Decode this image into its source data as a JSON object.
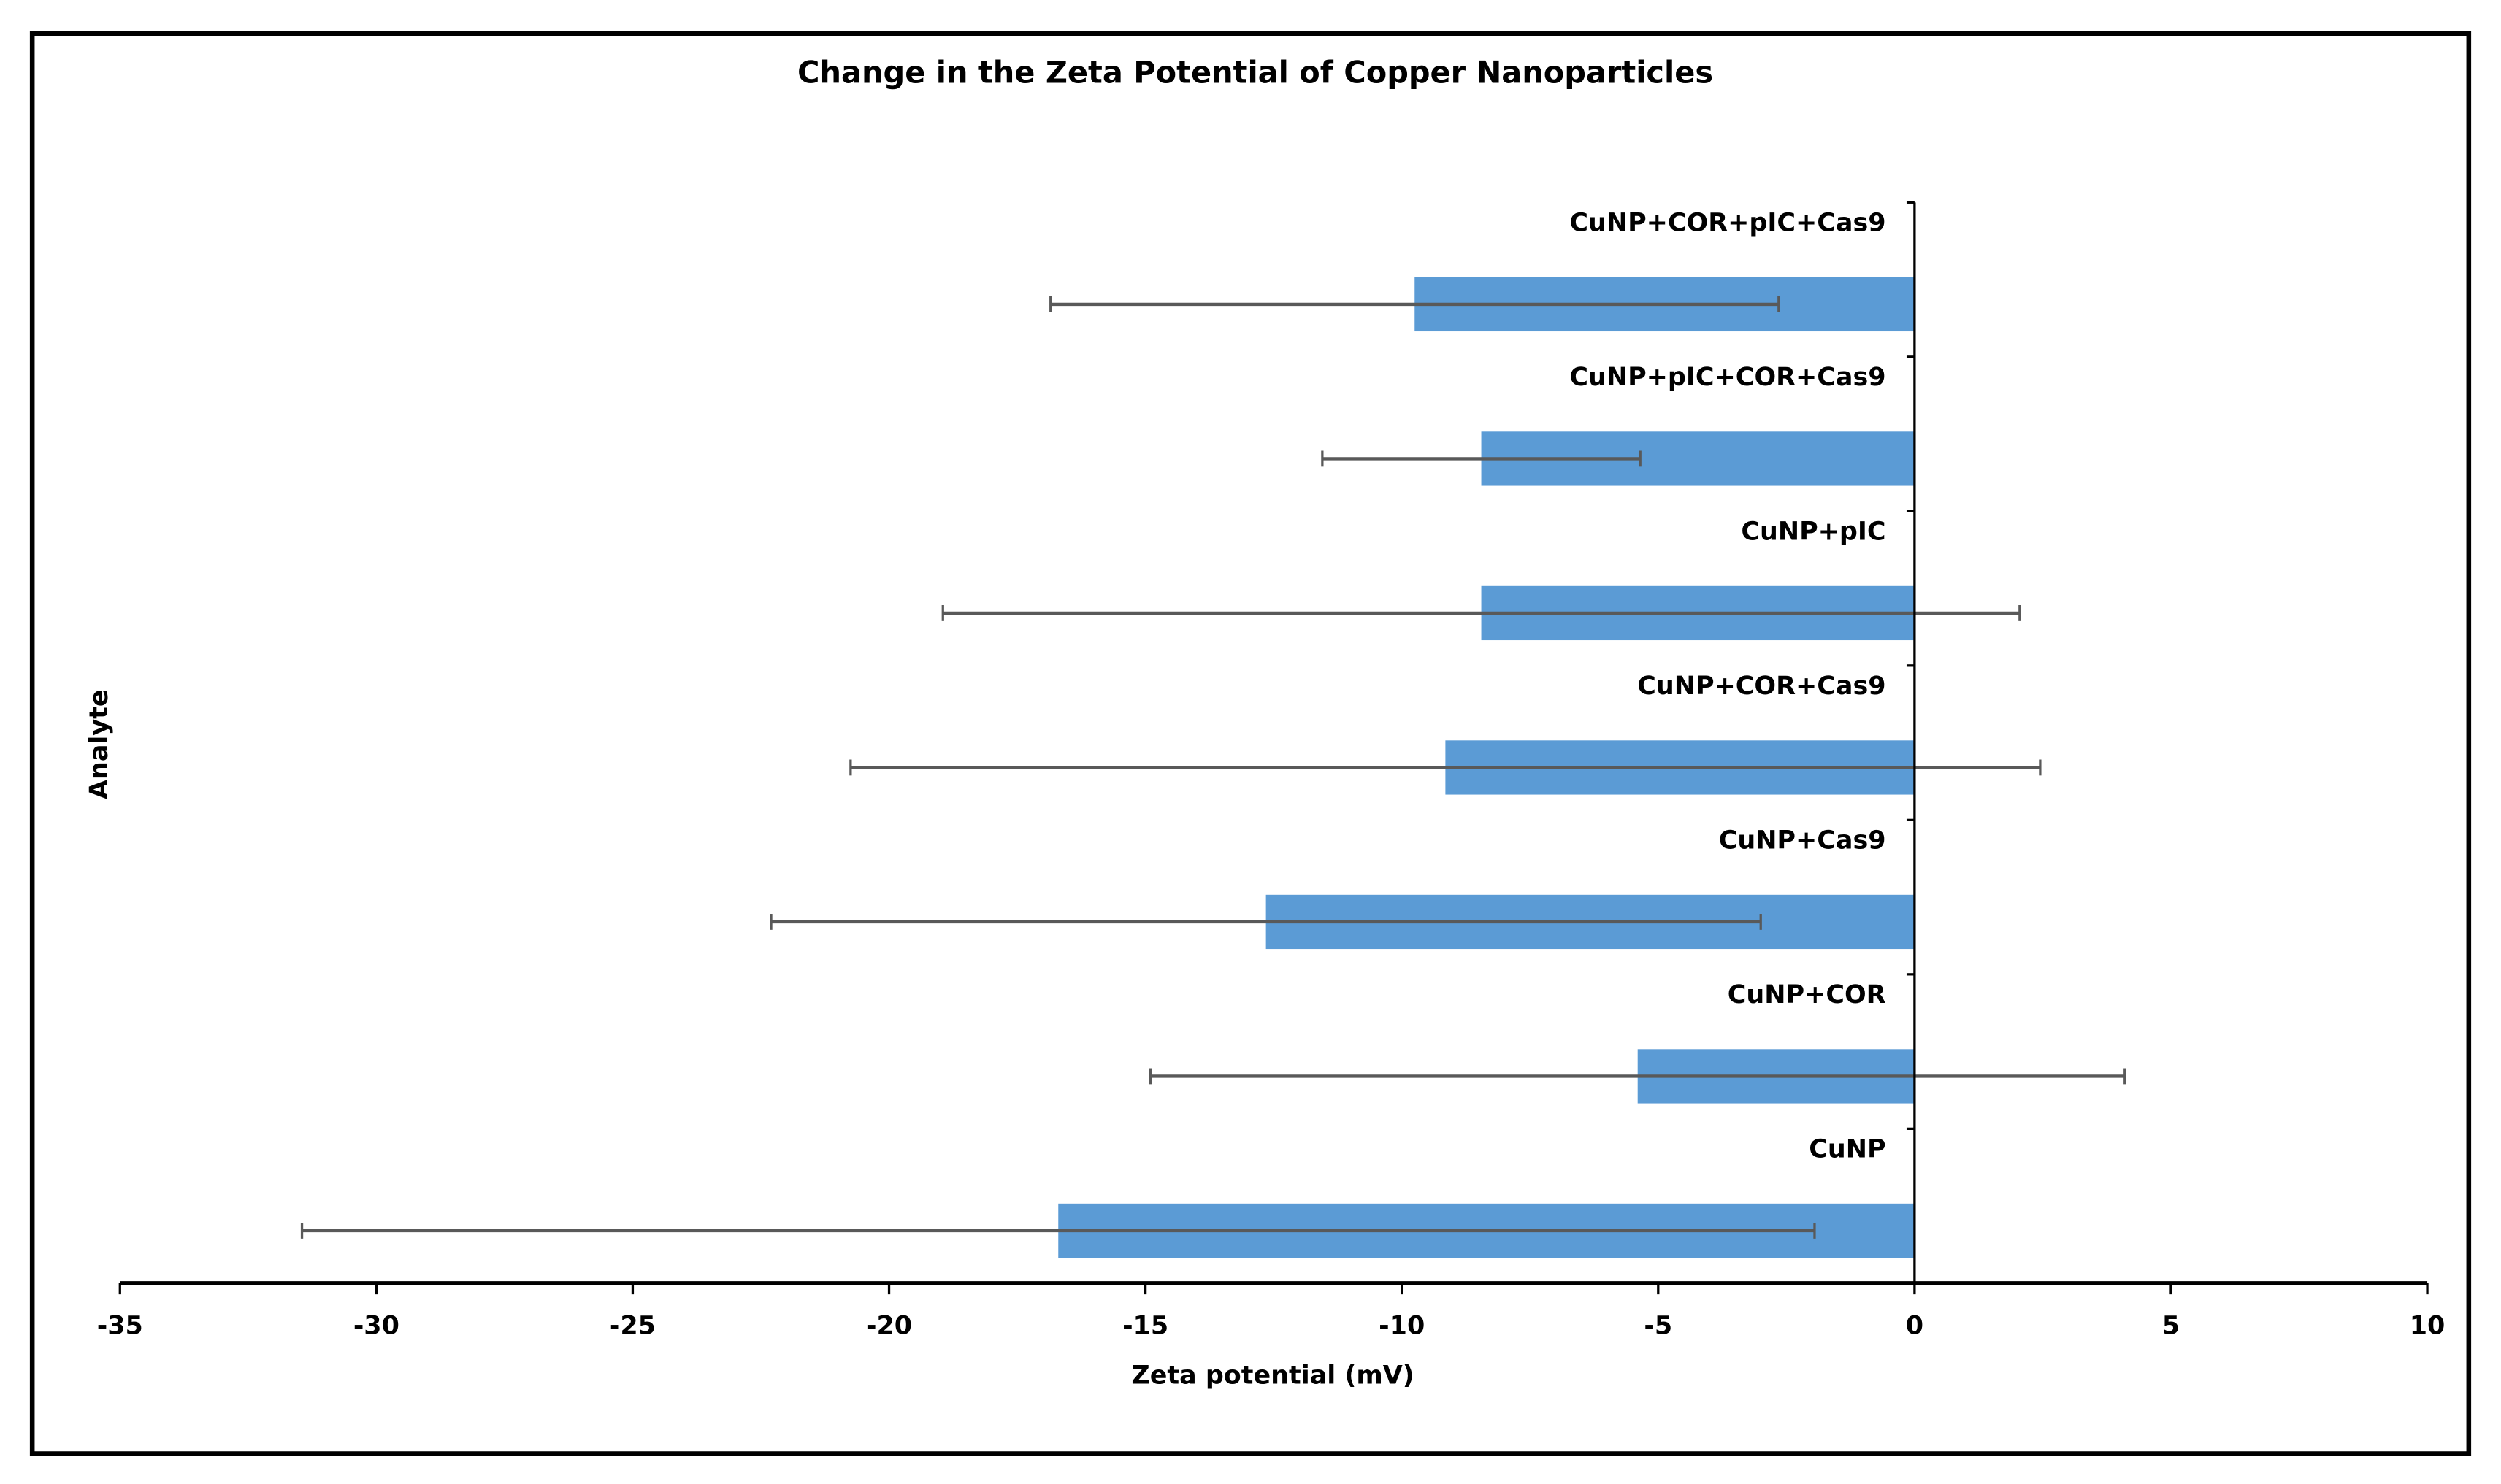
{
  "chart_data": {
    "type": "bar",
    "orientation": "horizontal",
    "title": "Change in the Zeta Potential of Copper Nanoparticles",
    "xlabel": "Zeta potential (mV)",
    "ylabel": "Analyte",
    "xlim": [
      -35,
      10
    ],
    "xticks": [
      "-35",
      "-30",
      "-25",
      "-20",
      "-15",
      "-10",
      "-5",
      "0",
      "5",
      "10"
    ],
    "xtick_values": [
      -35,
      -30,
      -25,
      -20,
      -15,
      -10,
      -5,
      0,
      5,
      10
    ],
    "grid": false,
    "legend": "none",
    "bar_color": "#5b9bd5",
    "error_bar_color": "#595959",
    "categories": [
      "CuNP",
      "CuNP+COR",
      "CuNP+Cas9",
      "CuNP+COR+Cas9",
      "CuNP+pIC",
      "CuNP+pIC+COR+Cas9",
      "CuNP+COR+pIC+Cas9"
    ],
    "values": [
      -16.7,
      -5.4,
      -12.65,
      -9.15,
      -8.45,
      -8.45,
      -9.75
    ],
    "errors": [
      14.75,
      9.5,
      9.65,
      11.6,
      10.5,
      3.1,
      7.1
    ]
  }
}
